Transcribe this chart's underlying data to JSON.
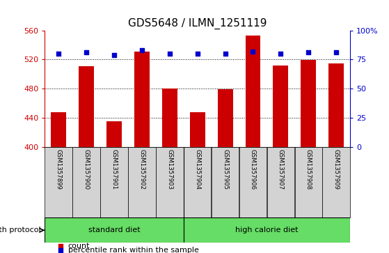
{
  "title": "GDS5648 / ILMN_1251119",
  "samples": [
    "GSM1357899",
    "GSM1357900",
    "GSM1357901",
    "GSM1357902",
    "GSM1357903",
    "GSM1357904",
    "GSM1357905",
    "GSM1357906",
    "GSM1357907",
    "GSM1357908",
    "GSM1357909"
  ],
  "counts": [
    447,
    511,
    435,
    531,
    480,
    447,
    479,
    553,
    512,
    519,
    515
  ],
  "percentile_ranks": [
    80,
    81,
    79,
    83,
    80,
    80,
    80,
    82,
    80,
    81,
    81
  ],
  "ylim_left": [
    400,
    560
  ],
  "ylim_right": [
    0,
    100
  ],
  "yticks_left": [
    400,
    440,
    480,
    520,
    560
  ],
  "yticks_right": [
    0,
    25,
    50,
    75,
    100
  ],
  "bar_color": "#cc0000",
  "dot_color": "#0000cc",
  "bar_width": 0.55,
  "protocol_label": "growth protocol",
  "legend_items": [
    {
      "label": "count",
      "color": "#cc0000"
    },
    {
      "label": "percentile rank within the sample",
      "color": "#0000cc"
    }
  ],
  "background_color": "#ffffff",
  "tick_area_color": "#d3d3d3",
  "green_color": "#66dd66",
  "grid_linestyle": ":",
  "grid_color": "#000000",
  "title_fontsize": 11,
  "axis_fontsize": 8,
  "label_fontsize": 8
}
